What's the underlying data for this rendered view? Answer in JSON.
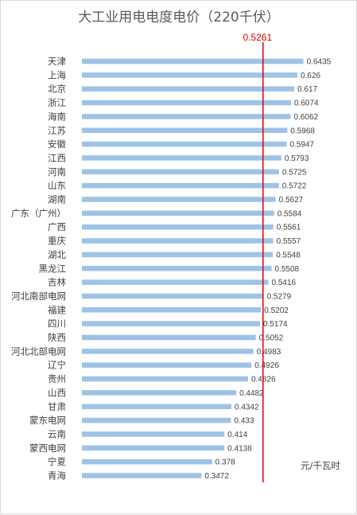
{
  "chart_data": {
    "type": "bar",
    "orientation": "horizontal",
    "title": "大工业用电电度电价（220千伏）",
    "unit_label": "元/千瓦时",
    "reference_line": {
      "label": "0.5261",
      "value": 0.5261,
      "color": "#e00000"
    },
    "bar_color": "#9dc3e6",
    "xlim": [
      0,
      0.7
    ],
    "grid": false,
    "legend": "none",
    "categories": [
      "天津",
      "上海",
      "北京",
      "浙江",
      "海南",
      "江苏",
      "安徽",
      "江西",
      "河南",
      "山东",
      "湖南",
      "广东（广州）",
      "广西",
      "重庆",
      "湖北",
      "黑龙江",
      "吉林",
      "河北南部电网",
      "福建",
      "四川",
      "陕西",
      "河北北部电网",
      "辽宁",
      "贵州",
      "山西",
      "甘肃",
      "蒙东电网",
      "云南",
      "蒙西电网",
      "宁夏",
      "青海"
    ],
    "values": [
      0.6435,
      0.626,
      0.617,
      0.6074,
      0.6062,
      0.5968,
      0.5947,
      0.5793,
      0.5725,
      0.5722,
      0.5627,
      0.5584,
      0.5561,
      0.5557,
      0.5548,
      0.5508,
      0.5416,
      0.5279,
      0.5202,
      0.5174,
      0.5052,
      0.4983,
      0.4926,
      0.4826,
      0.4482,
      0.4342,
      0.433,
      0.414,
      0.4138,
      0.378,
      0.3472
    ],
    "value_labels": [
      "0.6435",
      "0.626",
      "0.617",
      "0.6074",
      "0.6062",
      "0.5968",
      "0.5947",
      "0.5793",
      "0.5725",
      "0.5722",
      "0.5627",
      "0.5584",
      "0.5561",
      "0.5557",
      "0.5548",
      "0.5508",
      "0.5416",
      "0.5279",
      "0.5202",
      "0.5174",
      "0.5052",
      "0.4983",
      "0.4926",
      "0.4826",
      "0.4482",
      "0.4342",
      "0.433",
      "0.414",
      "0.4138",
      "0.378",
      "0.3472"
    ]
  }
}
